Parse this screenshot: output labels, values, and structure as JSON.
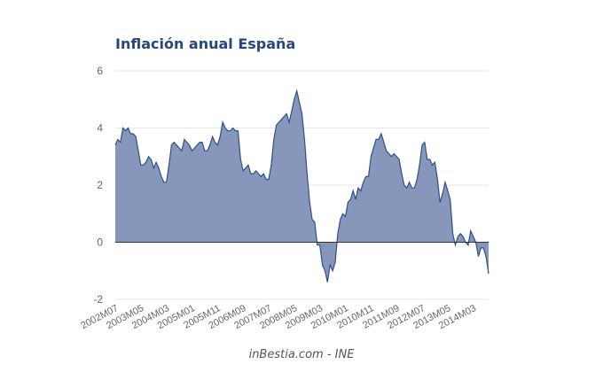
{
  "chart_data": {
    "type": "area",
    "title": "Inflación anual España",
    "source": "inBestia.com - INE",
    "ylim": [
      -2,
      6
    ],
    "y_ticks": [
      -2,
      0,
      2,
      4,
      6
    ],
    "x_tick_labels": [
      "2002M07",
      "2003M05",
      "2004M03",
      "2005M01",
      "2005M11",
      "2006M09",
      "2007M07",
      "2008M05",
      "2009M03",
      "2010M01",
      "2010M11",
      "2011M09",
      "2012M07",
      "2013M05",
      "2014M03"
    ],
    "x_start": "2002M07",
    "grid": true,
    "legend": "none",
    "colors": {
      "fill": "#8797bb",
      "line": "#2f4f87",
      "title": "#27467f"
    },
    "series": [
      {
        "values": [
          3.4,
          3.6,
          3.5,
          4.0,
          3.9,
          4.0,
          3.8,
          3.8,
          3.7,
          3.2,
          2.7,
          2.7,
          2.8,
          3.0,
          2.9,
          2.6,
          2.8,
          2.6,
          2.3,
          2.1,
          2.1,
          2.7,
          3.4,
          3.5,
          3.4,
          3.3,
          3.2,
          3.6,
          3.5,
          3.4,
          3.2,
          3.3,
          3.4,
          3.5,
          3.5,
          3.2,
          3.2,
          3.4,
          3.7,
          3.5,
          3.4,
          3.7,
          4.2,
          4.0,
          3.9,
          3.9,
          4.0,
          3.9,
          3.9,
          2.9,
          2.5,
          2.6,
          2.7,
          2.4,
          2.4,
          2.5,
          2.4,
          2.3,
          2.4,
          2.2,
          2.2,
          2.7,
          3.6,
          4.1,
          4.2,
          4.3,
          4.4,
          4.5,
          4.2,
          4.6,
          5.0,
          5.3,
          4.9,
          4.5,
          3.6,
          2.4,
          1.4,
          0.8,
          0.7,
          -0.1,
          -0.1,
          -0.8,
          -1.0,
          -1.4,
          -0.8,
          -1.0,
          -0.7,
          0.3,
          0.8,
          1.0,
          0.9,
          1.4,
          1.5,
          1.8,
          1.5,
          1.9,
          1.8,
          2.1,
          2.3,
          2.3,
          3.0,
          3.3,
          3.6,
          3.6,
          3.8,
          3.5,
          3.2,
          3.1,
          3.0,
          3.1,
          3.0,
          2.9,
          2.4,
          2.0,
          1.9,
          2.1,
          1.9,
          1.9,
          2.2,
          2.7,
          3.4,
          3.5,
          2.9,
          2.9,
          2.7,
          2.8,
          2.2,
          1.4,
          1.7,
          2.1,
          1.8,
          1.5,
          0.3,
          -0.1,
          0.2,
          0.3,
          0.2,
          0.0,
          -0.1,
          0.4,
          0.2,
          0.0,
          -0.5,
          -0.2,
          -0.2,
          -0.5,
          -1.1
        ]
      }
    ]
  }
}
